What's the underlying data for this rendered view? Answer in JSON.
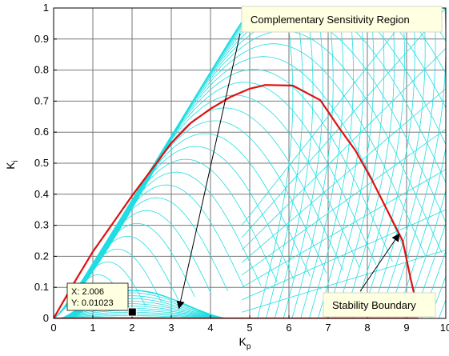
{
  "chart_data": {
    "type": "line",
    "xlabel": "K",
    "xlabel_sub": "p",
    "ylabel": "K",
    "ylabel_sub": "i",
    "xlim": [
      0,
      10
    ],
    "ylim": [
      0,
      1
    ],
    "xticks": [
      0,
      1,
      2,
      3,
      4,
      5,
      6,
      7,
      8,
      9,
      10
    ],
    "yticks": [
      0,
      0.1,
      0.2,
      0.3,
      0.4,
      0.5,
      0.6,
      0.7,
      0.8,
      0.9,
      1
    ],
    "xtick_labels": [
      "0",
      "1",
      "2",
      "3",
      "4",
      "5",
      "6",
      "7",
      "8",
      "9",
      "10"
    ],
    "ytick_labels": [
      "0",
      "0.1",
      "0.2",
      "0.3",
      "0.4",
      "0.5",
      "0.6",
      "0.7",
      "0.8",
      "0.9",
      "1"
    ],
    "grid": true,
    "colors": {
      "boundary": "#e01010",
      "contours": "#22dde2",
      "grid": "#777777",
      "annotation_fill": "#ffffe1"
    },
    "series": [
      {
        "role": "stability-boundary",
        "x": [
          0,
          0.5,
          1,
          1.5,
          2,
          2.5,
          3,
          3.5,
          4,
          4.5,
          5,
          5.4,
          6.1,
          6.8,
          7.3,
          7.7,
          8.1,
          8.5,
          8.9,
          9.1,
          9.3
        ],
        "y": [
          0,
          0.11,
          0.215,
          0.305,
          0.395,
          0.48,
          0.565,
          0.63,
          0.675,
          0.713,
          0.74,
          0.752,
          0.75,
          0.703,
          0.61,
          0.54,
          0.45,
          0.35,
          0.25,
          0.13,
          0.02
        ]
      },
      {
        "role": "stability-boundary-axis",
        "x": [
          0,
          9.3
        ],
        "y": [
          0,
          0
        ]
      }
    ],
    "annotations": [
      {
        "text": "Complementary Sensitivity Region",
        "arrow_to": [
          3.2,
          0.035
        ]
      },
      {
        "text": "Stability Boundary",
        "arrow_to": [
          8.8,
          0.27
        ]
      }
    ],
    "datatip": {
      "x_label": "X: 2.006",
      "y_label": "Y: 0.01023",
      "x": 2.006,
      "y": 0.01023
    }
  }
}
